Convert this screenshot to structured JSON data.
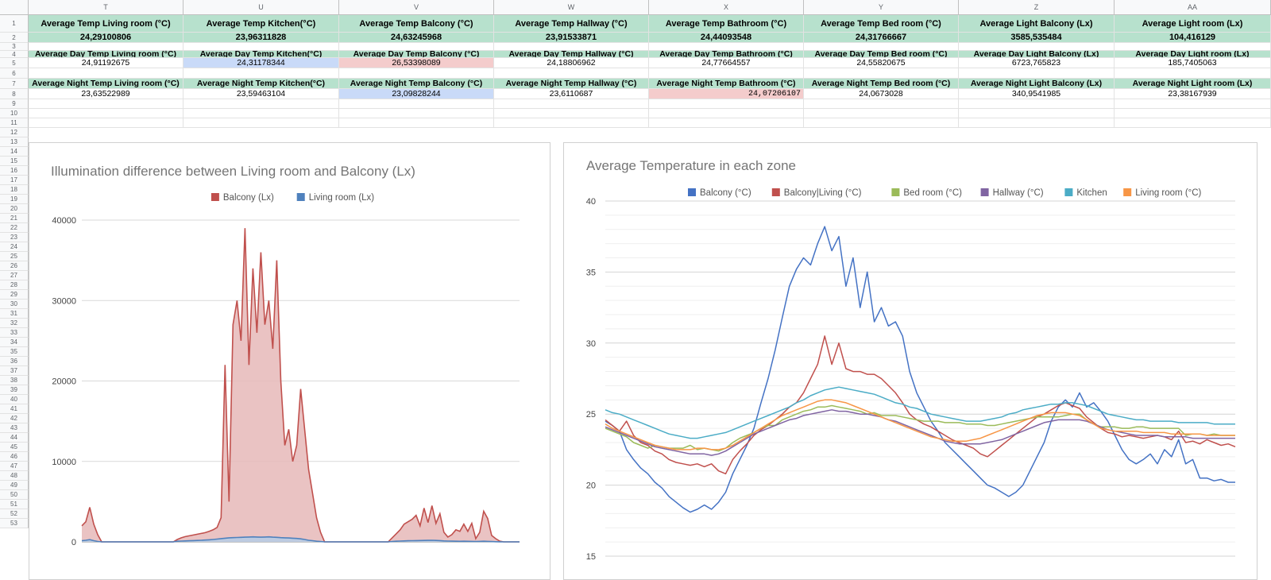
{
  "columns": [
    "T",
    "U",
    "V",
    "W",
    "X",
    "Y",
    "Z",
    "AA"
  ],
  "rows": [
    "1",
    "2",
    "3",
    "4",
    "5",
    "6",
    "7",
    "8",
    "9",
    "10",
    "11",
    "12",
    "13",
    "14",
    "15",
    "16",
    "17",
    "18",
    "19",
    "20",
    "21",
    "22",
    "23",
    "24",
    "25",
    "26",
    "27",
    "28",
    "29",
    "30",
    "31",
    "32",
    "33",
    "34",
    "35",
    "36",
    "37",
    "38",
    "39",
    "40",
    "41",
    "42",
    "43",
    "44",
    "45",
    "46",
    "47",
    "48",
    "49",
    "50",
    "51",
    "52",
    "53"
  ],
  "table": {
    "row1": [
      "Average Temp Living room (°C)",
      "Average Temp Kitchen(°C)",
      "Average Temp Balcony (°C)",
      "Average Temp Hallway (°C)",
      "Average Temp Bathroom (°C)",
      "Average Temp Bed room (°C)",
      "Average Light Balcony (Lx)",
      "Average Light room (Lx)"
    ],
    "row2": [
      "24,29100806",
      "23,96311828",
      "24,63245968",
      "23,91533871",
      "24,44093548",
      "24,31766667",
      "3585,535484",
      "104,416129"
    ],
    "row4": [
      "Average Day Temp Living room (°C)",
      "Average Day Temp Kitchen(°C)",
      "Average Day Temp Balcony (°C)",
      "Average Day Temp Hallway (°C)",
      "Average Day Temp Bathroom (°C)",
      "Average Day Temp Bed room (°C)",
      "Average Day Light Balcony (Lx)",
      "Average Day Light room (Lx)"
    ],
    "row5": [
      "24,91192675",
      "24,31178344",
      "26,53398089",
      "24,18806962",
      "24,77664557",
      "24,55820675",
      "6723,765823",
      "185,7405063"
    ],
    "row7": [
      "Average Night Temp Living room (°C)",
      "Average Night Temp Kitchen(°C)",
      "Average Night Temp Balcony (°C)",
      "Average Night Temp Hallway (°C)",
      "Average Night Temp Bathroom (°C)",
      "Average Night Temp Bed room (°C)",
      "Average Night Light Balcony (Lx)",
      "Average Night Light room (Lx)"
    ],
    "row8": [
      "23,63522989",
      "23,59463104",
      "23,09828244",
      "23,6110687",
      "24,07206107",
      "24,0673028",
      "340,9541985",
      "23,38167939"
    ]
  },
  "colors": {
    "header_green": "#b7e1cd",
    "highlight_blue": "#c9daf8",
    "highlight_red": "#f4cccc",
    "balcony_light": "#c0504d",
    "living_light": "#4f81bd"
  },
  "chart_data": [
    {
      "type": "area",
      "title": "Illumination difference between Living room and Balcony (Lx)",
      "legend_position": "top",
      "ylim": [
        0,
        40000
      ],
      "y_ticks": [
        "0",
        "10000",
        "20000",
        "30000",
        "40000"
      ],
      "grid": true,
      "series": [
        {
          "name": "Balcony (Lx)",
          "color": "#c0504d",
          "values": [
            2000,
            2500,
            4300,
            2200,
            900,
            0,
            0,
            0,
            0,
            0,
            0,
            0,
            0,
            0,
            0,
            0,
            0,
            0,
            0,
            0,
            0,
            0,
            0,
            0,
            300,
            500,
            650,
            750,
            850,
            950,
            1050,
            1150,
            1300,
            1500,
            1800,
            3000,
            22000,
            5000,
            27000,
            30000,
            25000,
            39000,
            22000,
            34000,
            26000,
            36000,
            27000,
            30000,
            24000,
            35000,
            20000,
            12000,
            14000,
            10000,
            12000,
            19000,
            14000,
            9000,
            6000,
            3000,
            1200,
            0,
            0,
            0,
            0,
            0,
            0,
            0,
            0,
            0,
            0,
            0,
            0,
            0,
            0,
            0,
            0,
            0,
            500,
            1000,
            1500,
            2200,
            2500,
            2800,
            3300,
            2000,
            4200,
            2400,
            4500,
            2300,
            3500,
            1200,
            600,
            900,
            1500,
            1300,
            2200,
            1300,
            2300,
            400,
            1200,
            3800,
            2900,
            800,
            400,
            100,
            0,
            0,
            0,
            0,
            0
          ]
        },
        {
          "name": "Living room (Lx)",
          "color": "#4f81bd",
          "values": [
            150,
            200,
            280,
            150,
            50,
            0,
            0,
            0,
            0,
            0,
            0,
            0,
            0,
            0,
            0,
            0,
            0,
            0,
            0,
            0,
            0,
            0,
            0,
            0,
            80,
            100,
            120,
            140,
            160,
            180,
            200,
            230,
            260,
            300,
            350,
            400,
            450,
            500,
            520,
            540,
            560,
            580,
            600,
            620,
            600,
            580,
            600,
            620,
            580,
            560,
            520,
            500,
            480,
            450,
            420,
            380,
            300,
            200,
            150,
            80,
            40,
            0,
            0,
            0,
            0,
            0,
            0,
            0,
            0,
            0,
            0,
            0,
            0,
            0,
            0,
            0,
            0,
            0,
            50,
            80,
            100,
            120,
            140,
            150,
            160,
            170,
            180,
            190,
            200,
            180,
            160,
            120,
            100,
            90,
            80,
            70,
            80,
            70,
            60,
            50,
            60,
            80,
            60,
            40,
            20,
            10,
            0,
            0,
            0,
            0,
            0
          ]
        }
      ]
    },
    {
      "type": "line",
      "title": "Average Temperature in each zone",
      "legend_position": "top",
      "ylim": [
        15,
        40
      ],
      "y_ticks": [
        "15",
        "20",
        "25",
        "30",
        "35",
        "40"
      ],
      "grid": true,
      "series": [
        {
          "name": "Balcony (°C)",
          "color": "#4472c4",
          "values": [
            24.5,
            24.2,
            23.8,
            22.5,
            21.8,
            21.2,
            20.8,
            20.2,
            19.8,
            19.2,
            18.8,
            18.4,
            18.1,
            18.3,
            18.6,
            18.3,
            18.8,
            19.5,
            20.8,
            21.8,
            22.8,
            24.0,
            25.8,
            27.5,
            29.5,
            31.8,
            34.0,
            35.2,
            36.0,
            35.5,
            37.0,
            38.2,
            36.5,
            37.5,
            34.0,
            36.0,
            32.5,
            35.0,
            31.5,
            32.5,
            31.2,
            31.5,
            30.5,
            28.0,
            26.5,
            25.5,
            24.5,
            23.8,
            23.0,
            22.5,
            22.0,
            21.5,
            21.0,
            20.5,
            20.0,
            19.8,
            19.5,
            19.2,
            19.5,
            20.0,
            21.0,
            22.0,
            23.0,
            24.5,
            25.5,
            26.0,
            25.5,
            26.5,
            25.5,
            25.8,
            25.2,
            24.5,
            23.5,
            22.5,
            21.8,
            21.5,
            21.8,
            22.2,
            21.5,
            22.5,
            22.0,
            23.2,
            21.5,
            21.8,
            20.5,
            20.5,
            20.3,
            20.4,
            20.2,
            20.2
          ]
        },
        {
          "name": "Balcony|Living (°C)",
          "color": "#c0504d",
          "values": [
            24.6,
            24.2,
            23.8,
            24.5,
            23.5,
            23.0,
            22.8,
            22.4,
            22.2,
            21.8,
            21.6,
            21.5,
            21.4,
            21.5,
            21.3,
            21.5,
            21.0,
            20.8,
            21.8,
            22.4,
            22.9,
            23.5,
            23.9,
            24.2,
            24.6,
            25.0,
            25.5,
            25.8,
            26.5,
            27.5,
            28.5,
            30.5,
            28.5,
            30.0,
            28.2,
            28.0,
            28.0,
            27.8,
            27.8,
            27.5,
            27.0,
            26.5,
            25.8,
            25.0,
            24.6,
            24.3,
            24.1,
            23.8,
            23.5,
            23.2,
            23.0,
            22.8,
            22.6,
            22.2,
            22.0,
            22.4,
            22.8,
            23.2,
            23.6,
            24.0,
            24.4,
            24.8,
            25.0,
            25.3,
            25.6,
            25.8,
            25.6,
            25.4,
            24.8,
            24.4,
            24.0,
            23.7,
            23.6,
            23.4,
            23.5,
            23.4,
            23.3,
            23.4,
            23.5,
            23.4,
            23.2,
            23.8,
            23.0,
            23.1,
            22.9,
            23.2,
            23.0,
            22.8,
            22.9,
            22.7
          ]
        },
        {
          "name": "Bed room (°C)",
          "color": "#9bbb59",
          "values": [
            24.0,
            23.8,
            23.6,
            23.4,
            23.0,
            22.8,
            22.6,
            22.8,
            22.7,
            22.6,
            22.6,
            22.6,
            22.8,
            22.5,
            22.6,
            22.5,
            22.4,
            22.6,
            23.0,
            23.3,
            23.5,
            23.7,
            24.0,
            24.2,
            24.2,
            24.6,
            24.8,
            25.0,
            25.2,
            25.3,
            25.5,
            25.5,
            25.6,
            25.5,
            25.4,
            25.3,
            25.2,
            25.0,
            25.1,
            24.9,
            24.9,
            24.9,
            24.8,
            24.7,
            24.6,
            24.5,
            24.5,
            24.5,
            24.4,
            24.4,
            24.4,
            24.3,
            24.3,
            24.3,
            24.2,
            24.2,
            24.3,
            24.4,
            24.5,
            24.6,
            24.7,
            24.8,
            24.8,
            24.8,
            24.8,
            24.9,
            25.0,
            25.0,
            24.6,
            24.3,
            24.1,
            24.1,
            24.1,
            24.0,
            24.0,
            24.1,
            24.1,
            24.0,
            24.0,
            24.0,
            24.0,
            24.0,
            23.5,
            23.6,
            23.6,
            23.5,
            23.6,
            23.5,
            23.5,
            23.5
          ]
        },
        {
          "name": "Hallway (°C)",
          "color": "#8064a2",
          "values": [
            24.1,
            23.9,
            23.7,
            23.5,
            23.3,
            23.1,
            22.9,
            22.7,
            22.6,
            22.5,
            22.4,
            22.3,
            22.2,
            22.2,
            22.2,
            22.1,
            22.2,
            22.4,
            22.7,
            23.0,
            23.3,
            23.6,
            23.8,
            24.0,
            24.2,
            24.4,
            24.6,
            24.7,
            24.9,
            25.0,
            25.1,
            25.2,
            25.3,
            25.2,
            25.2,
            25.1,
            25.0,
            25.0,
            24.9,
            24.8,
            24.6,
            24.5,
            24.3,
            24.1,
            23.9,
            23.7,
            23.5,
            23.3,
            23.1,
            23.0,
            22.9,
            22.9,
            22.9,
            22.9,
            23.0,
            23.1,
            23.2,
            23.4,
            23.6,
            23.8,
            24.0,
            24.2,
            24.4,
            24.5,
            24.6,
            24.6,
            24.6,
            24.6,
            24.5,
            24.3,
            24.1,
            23.9,
            23.8,
            23.7,
            23.6,
            23.5,
            23.5,
            23.5,
            23.5,
            23.4,
            23.4,
            23.4,
            23.4,
            23.3,
            23.3,
            23.3,
            23.3,
            23.3,
            23.3,
            23.3
          ]
        },
        {
          "name": "Kitchen",
          "color": "#4bacc6",
          "values": [
            25.3,
            25.1,
            25.0,
            24.8,
            24.6,
            24.4,
            24.2,
            24.0,
            23.8,
            23.6,
            23.5,
            23.4,
            23.3,
            23.3,
            23.4,
            23.5,
            23.6,
            23.7,
            23.9,
            24.1,
            24.3,
            24.5,
            24.7,
            24.9,
            25.1,
            25.3,
            25.5,
            25.8,
            26.0,
            26.3,
            26.5,
            26.7,
            26.8,
            26.9,
            26.8,
            26.7,
            26.6,
            26.5,
            26.4,
            26.2,
            26.0,
            25.8,
            25.7,
            25.5,
            25.4,
            25.2,
            25.0,
            24.9,
            24.8,
            24.7,
            24.6,
            24.5,
            24.5,
            24.5,
            24.6,
            24.7,
            24.8,
            25.0,
            25.1,
            25.3,
            25.4,
            25.5,
            25.6,
            25.7,
            25.7,
            25.8,
            25.8,
            25.7,
            25.6,
            25.4,
            25.2,
            25.0,
            24.9,
            24.8,
            24.7,
            24.6,
            24.6,
            24.5,
            24.5,
            24.5,
            24.5,
            24.4,
            24.4,
            24.4,
            24.4,
            24.4,
            24.3,
            24.3,
            24.3,
            24.3
          ]
        },
        {
          "name": "Living room (°C)",
          "color": "#f79646",
          "values": [
            24.3,
            24.0,
            23.8,
            23.6,
            23.4,
            23.2,
            23.0,
            22.8,
            22.7,
            22.6,
            22.5,
            22.5,
            22.5,
            22.6,
            22.6,
            22.5,
            22.5,
            22.6,
            22.8,
            23.1,
            23.4,
            23.7,
            24.0,
            24.3,
            24.6,
            24.9,
            25.1,
            25.3,
            25.5,
            25.7,
            25.9,
            26.0,
            26.0,
            25.9,
            25.8,
            25.6,
            25.4,
            25.2,
            25.0,
            24.8,
            24.6,
            24.4,
            24.2,
            24.0,
            23.8,
            23.6,
            23.4,
            23.3,
            23.2,
            23.1,
            23.1,
            23.1,
            23.2,
            23.3,
            23.5,
            23.7,
            23.9,
            24.1,
            24.3,
            24.5,
            24.7,
            24.9,
            25.0,
            25.1,
            25.1,
            25.1,
            25.0,
            24.9,
            24.6,
            24.3,
            24.0,
            23.9,
            23.8,
            23.8,
            23.8,
            23.8,
            23.7,
            23.7,
            23.7,
            23.7,
            23.6,
            23.6,
            23.6,
            23.6,
            23.6,
            23.5,
            23.5,
            23.5,
            23.5,
            23.5
          ]
        }
      ]
    }
  ]
}
